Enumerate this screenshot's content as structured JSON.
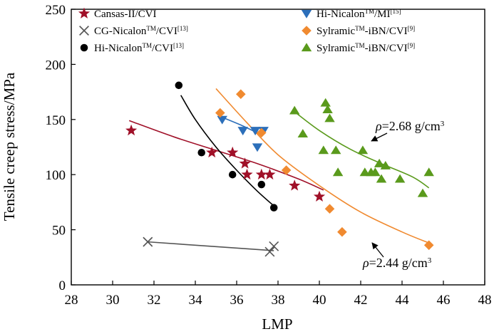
{
  "chart_data": {
    "type": "scatter",
    "xlabel": "LMP",
    "ylabel": "Tensile creep stress/MPa",
    "xlim": [
      28,
      48
    ],
    "ylim": [
      0,
      250
    ],
    "xticks": [
      28,
      30,
      32,
      34,
      36,
      38,
      40,
      42,
      44,
      46,
      48
    ],
    "yticks": [
      0,
      50,
      100,
      150,
      200,
      250
    ],
    "grid": false,
    "legend_position": "top",
    "series": [
      {
        "name": "Cansas-II/CVI",
        "label_parts": [
          "Cansas-II/CVI",
          "",
          "",
          "",
          ""
        ],
        "marker": "star",
        "color": "#a01028",
        "points": [
          [
            30.9,
            140
          ],
          [
            34.8,
            120
          ],
          [
            35.8,
            120
          ],
          [
            36.4,
            110
          ],
          [
            36.5,
            100
          ],
          [
            37.2,
            100
          ],
          [
            37.6,
            100
          ],
          [
            38.8,
            90
          ],
          [
            40.0,
            80
          ]
        ],
        "fit": [
          [
            30.8,
            149
          ],
          [
            33,
            134
          ],
          [
            35,
            122
          ],
          [
            37,
            110
          ],
          [
            39,
            96
          ],
          [
            40.2,
            86
          ]
        ]
      },
      {
        "name": "CG-NicalonTM/CVI[13]",
        "label_parts": [
          "CG-Nicalon",
          "TM",
          "/CVI",
          "[13]",
          ""
        ],
        "marker": "x",
        "color": "#555555",
        "points": [
          [
            31.7,
            39
          ],
          [
            37.6,
            30
          ],
          [
            37.8,
            35
          ]
        ],
        "fit": [
          [
            31.7,
            39
          ],
          [
            37.8,
            31
          ]
        ]
      },
      {
        "name": "Hi-NicalonTM/CVI[13]",
        "label_parts": [
          "Hi-Nicalon",
          "TM",
          "/CVI",
          "[13]",
          ""
        ],
        "marker": "circle",
        "color": "#000000",
        "points": [
          [
            33.2,
            181
          ],
          [
            34.3,
            120
          ],
          [
            35.8,
            100
          ],
          [
            37.2,
            91
          ],
          [
            37.8,
            70
          ]
        ],
        "fit": [
          [
            33.3,
            172
          ],
          [
            34,
            150
          ],
          [
            35,
            125
          ],
          [
            36,
            104
          ],
          [
            37,
            85
          ],
          [
            37.9,
            70
          ]
        ]
      },
      {
        "name": "Hi-NicalonTM/MI[15]",
        "label_parts": [
          "Hi-Nicalon",
          "TM",
          "/MI",
          "[15]",
          ""
        ],
        "marker": "triangle-down",
        "color": "#2c6fba",
        "points": [
          [
            35.3,
            150
          ],
          [
            36.3,
            140
          ],
          [
            36.9,
            140
          ],
          [
            37.0,
            125
          ],
          [
            37.3,
            140
          ]
        ],
        "fit": [
          [
            35.3,
            152
          ],
          [
            36.2,
            145
          ],
          [
            37.2,
            136
          ]
        ]
      },
      {
        "name": "SylramicTM-iBN/CVI[9] (orange)",
        "label_parts": [
          "Sylramic",
          "TM",
          "-iBN/CVI",
          "[9]",
          ""
        ],
        "marker": "diamond",
        "color": "#f08a30",
        "points": [
          [
            35.2,
            156
          ],
          [
            36.2,
            173
          ],
          [
            37.2,
            138
          ],
          [
            38.4,
            104
          ],
          [
            40.5,
            69
          ],
          [
            41.1,
            48
          ],
          [
            45.3,
            36
          ]
        ],
        "fit": [
          [
            35.0,
            178
          ],
          [
            36.5,
            147
          ],
          [
            38,
            118
          ],
          [
            40,
            90
          ],
          [
            42,
            66
          ],
          [
            44,
            48
          ],
          [
            45.3,
            38
          ]
        ]
      },
      {
        "name": "SylramicTM-iBN/CVI[9] (green)",
        "label_parts": [
          "Sylramic",
          "TM",
          "-iBN/CVI",
          "[9]",
          ""
        ],
        "marker": "triangle-up",
        "color": "#5a9a1c",
        "points": [
          [
            38.8,
            158
          ],
          [
            39.2,
            137
          ],
          [
            40.2,
            122
          ],
          [
            40.3,
            165
          ],
          [
            40.4,
            159
          ],
          [
            40.5,
            151
          ],
          [
            40.8,
            122
          ],
          [
            40.9,
            102
          ],
          [
            42.1,
            122
          ],
          [
            42.2,
            102
          ],
          [
            42.5,
            102
          ],
          [
            42.7,
            102
          ],
          [
            42.9,
            110
          ],
          [
            43.0,
            96
          ],
          [
            43.2,
            108
          ],
          [
            43.9,
            96
          ],
          [
            45.0,
            83
          ],
          [
            45.3,
            102
          ]
        ],
        "fit": [
          [
            38.8,
            157
          ],
          [
            40,
            140
          ],
          [
            41.5,
            123
          ],
          [
            43,
            110
          ],
          [
            44.5,
            98
          ],
          [
            45.3,
            88
          ]
        ]
      }
    ],
    "annotations": [
      {
        "pre": "ρ",
        "text": "=2.68 g/cm",
        "sup": "3"
      },
      {
        "pre": "ρ",
        "text": "=2.44 g/cm",
        "sup": "3"
      }
    ]
  }
}
